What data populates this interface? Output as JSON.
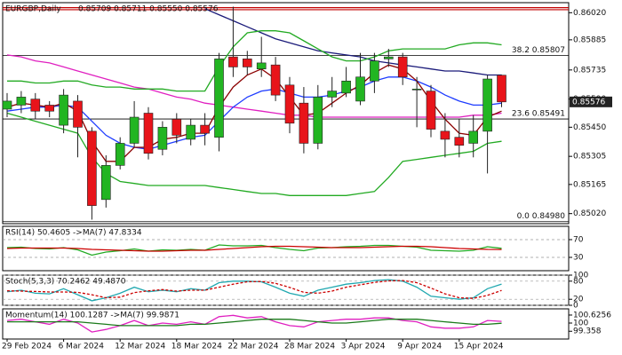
{
  "chart_data": [
    {
      "type": "candlestick",
      "title": "EURGBP,Daily",
      "subtitle": "0.85709 0.85711 0.85550 0.85576",
      "categories": [
        "29 Feb 2024",
        null,
        null,
        null,
        "6 Mar 2024",
        null,
        null,
        null,
        "12 Mar 2024",
        null,
        null,
        null,
        "18 Mar 2024",
        null,
        null,
        null,
        "22 Mar 2024",
        null,
        null,
        null,
        "28 Mar 2024",
        null,
        null,
        null,
        "3 Apr 2024",
        null,
        null,
        null,
        "9 Apr 2024",
        null,
        null,
        null,
        "15 Apr 2024",
        null,
        null,
        null
      ],
      "open": [
        0.8554,
        0.8556,
        0.8559,
        0.8556,
        0.8546,
        0.8558,
        0.8543,
        0.8509,
        0.8526,
        0.8537,
        0.8552,
        0.8534,
        0.8549,
        0.8539,
        0.8546,
        0.854,
        0.858,
        0.8579,
        0.8574,
        0.8576,
        0.8566,
        0.8557,
        0.8537,
        0.856,
        0.8562,
        0.8558,
        0.8568,
        0.8579,
        0.858,
        0.8564,
        0.8563,
        0.8543,
        0.854,
        0.8537,
        0.8543,
        0.85709
      ],
      "high": [
        0.8562,
        0.8563,
        0.8562,
        0.8558,
        0.8564,
        0.8561,
        0.8545,
        0.8531,
        0.854,
        0.8558,
        0.8555,
        0.8548,
        0.8552,
        0.8549,
        0.8552,
        0.8582,
        0.8605,
        0.8583,
        0.859,
        0.858,
        0.857,
        0.8565,
        0.8566,
        0.857,
        0.8575,
        0.8582,
        0.8582,
        0.8584,
        0.8582,
        0.857,
        0.8566,
        0.8552,
        0.8549,
        0.8551,
        0.8571,
        0.85711
      ],
      "low": [
        0.855,
        0.8552,
        0.8549,
        0.855,
        0.8542,
        0.853,
        0.8499,
        0.8505,
        0.8524,
        0.8535,
        0.8529,
        0.8531,
        0.8537,
        0.8536,
        0.8536,
        0.8533,
        0.857,
        0.8571,
        0.857,
        0.8558,
        0.8542,
        0.8532,
        0.8534,
        0.8555,
        0.856,
        0.8556,
        0.8562,
        0.8575,
        0.8566,
        0.8545,
        0.854,
        0.853,
        0.853,
        0.853,
        0.8522,
        0.8555
      ],
      "close": [
        0.8558,
        0.856,
        0.8553,
        0.8553,
        0.8561,
        0.8545,
        0.8506,
        0.8526,
        0.8537,
        0.855,
        0.8532,
        0.8545,
        0.8541,
        0.8546,
        0.8542,
        0.8579,
        0.8575,
        0.8575,
        0.8577,
        0.8561,
        0.8547,
        0.8537,
        0.856,
        0.8563,
        0.8568,
        0.857,
        0.8578,
        0.858,
        0.857,
        0.8564,
        0.8544,
        0.8539,
        0.8536,
        0.8543,
        0.8569,
        0.85576
      ],
      "up_color": "#22b522",
      "down_color": "#e8141a",
      "lines": [
        {
          "color": "#1b1b7a",
          "values": [
            null,
            null,
            null,
            null,
            null,
            null,
            null,
            null,
            null,
            null,
            null,
            null,
            null,
            null,
            0.8604,
            0.8601,
            0.8598,
            0.8595,
            0.8592,
            0.8589,
            0.8587,
            0.8585,
            0.8583,
            0.8582,
            0.8581,
            0.858,
            0.8578,
            0.8577,
            0.8576,
            0.8575,
            0.8574,
            0.8573,
            0.8573,
            0.8572,
            0.8571,
            0.8571
          ]
        },
        {
          "color": "#e020c0",
          "values": [
            0.8581,
            0.858,
            0.8578,
            0.8577,
            0.8575,
            0.8573,
            0.8571,
            0.8569,
            0.8567,
            0.8565,
            0.8564,
            0.8562,
            0.856,
            0.8559,
            0.8557,
            0.8556,
            0.8555,
            0.8554,
            0.8553,
            0.8552,
            0.8551,
            0.8551,
            0.855,
            0.855,
            0.855,
            0.855,
            0.855,
            0.855,
            0.855,
            0.855,
            0.855,
            0.855,
            0.855,
            0.8551,
            0.8551,
            0.8552
          ]
        },
        {
          "color": "#22aa22",
          "values": [
            0.8568,
            0.8568,
            0.8567,
            0.8567,
            0.8568,
            0.8568,
            0.8566,
            0.8565,
            0.8565,
            0.8564,
            0.8564,
            0.8564,
            0.8563,
            0.8563,
            0.8563,
            0.8575,
            0.8585,
            0.8592,
            0.8593,
            0.8593,
            0.8592,
            0.8588,
            0.8584,
            0.858,
            0.8578,
            0.8578,
            0.858,
            0.8583,
            0.8584,
            0.8584,
            0.8584,
            0.8584,
            0.8586,
            0.8587,
            0.8587,
            0.8586
          ]
        },
        {
          "color": "#22aa22",
          "values": [
            0.8552,
            0.855,
            0.8548,
            0.8546,
            0.8544,
            0.8542,
            0.853,
            0.8522,
            0.8518,
            0.8517,
            0.8516,
            0.8516,
            0.8516,
            0.8516,
            0.8516,
            0.8515,
            0.8514,
            0.8513,
            0.8512,
            0.8512,
            0.8511,
            0.8511,
            0.8511,
            0.8511,
            0.8511,
            0.8512,
            0.8513,
            0.852,
            0.8528,
            0.8529,
            0.853,
            0.8531,
            0.8532,
            0.8533,
            0.8537,
            0.8538
          ]
        },
        {
          "color": "#1e3cff",
          "values": [
            0.8553,
            0.8554,
            0.8555,
            0.8555,
            0.8556,
            0.8555,
            0.8548,
            0.8541,
            0.8537,
            0.8535,
            0.8534,
            0.8536,
            0.8538,
            0.854,
            0.8541,
            0.8548,
            0.8555,
            0.856,
            0.8563,
            0.8564,
            0.8562,
            0.856,
            0.856,
            0.8561,
            0.8563,
            0.8565,
            0.8568,
            0.857,
            0.857,
            0.8568,
            0.8565,
            0.8561,
            0.8558,
            0.8556,
            0.8556,
            0.8557
          ]
        },
        {
          "color": "#8b0000",
          "values": [
            0.8555,
            0.8557,
            0.8556,
            0.8555,
            0.8557,
            0.8553,
            0.8538,
            0.8528,
            0.8528,
            0.8535,
            0.8535,
            0.8539,
            0.854,
            0.8542,
            0.8542,
            0.8555,
            0.8565,
            0.8571,
            0.8574,
            0.8569,
            0.856,
            0.8551,
            0.8552,
            0.8557,
            0.8562,
            0.8566,
            0.8572,
            0.8576,
            0.8574,
            0.8568,
            0.8558,
            0.8549,
            0.8542,
            0.8541,
            0.855,
            0.8553
          ]
        }
      ],
      "hlines": [
        {
          "value": 0.86045,
          "color": "#c00000"
        },
        {
          "value": 0.86035,
          "color": "#c00000"
        }
      ],
      "levels": [
        {
          "value": 0.85807,
          "label": "38.2 0.85807"
        },
        {
          "value": 0.85491,
          "label": "23.6 0.85491"
        },
        {
          "value": 0.8498,
          "label": "0.0 0.84980"
        }
      ],
      "last_price": {
        "value": 0.85576,
        "label": "0.85576"
      },
      "ylim": [
        0.8497,
        0.8607
      ],
      "yticks": [
        {
          "value": 0.8602,
          "label": "0.86020"
        },
        0.85885,
        0.85735,
        {
          "value": 0.8559,
          "label": "0.85590"
        },
        {
          "value": 0.8545,
          "label": "0.85450"
        },
        0.85305,
        0.85165,
        {
          "value": 0.8502,
          "label": "0.85020"
        }
      ],
      "grid": false
    },
    {
      "type": "line",
      "title": "RSI(14) 50.4605 ->MA(7) 47.8334",
      "ylim": [
        0,
        100
      ],
      "yticks": [
        30,
        70
      ],
      "grid": true,
      "series": [
        {
          "color": "#22aa22",
          "values": [
            52,
            53,
            50,
            49,
            52,
            47,
            35,
            42,
            45,
            49,
            44,
            47,
            46,
            48,
            46,
            58,
            56,
            56,
            57,
            52,
            48,
            45,
            51,
            52,
            54,
            55,
            57,
            57,
            55,
            53,
            46,
            45,
            44,
            46,
            54,
            50.4605
          ]
        },
        {
          "color": "#cc0000",
          "values": [
            50,
            51,
            51,
            51,
            51,
            50,
            48,
            47,
            46,
            45,
            44,
            44,
            45,
            46,
            46,
            48,
            50,
            52,
            54,
            55,
            55,
            54,
            53,
            52,
            52,
            52,
            53,
            54,
            55,
            55,
            54,
            52,
            50,
            49,
            48,
            47.8334
          ]
        }
      ]
    },
    {
      "type": "line",
      "title": "Stoch(5,3,3) 70.2462 49.4870",
      "ylim": [
        0,
        100
      ],
      "yticks": [
        0,
        20,
        80,
        100
      ],
      "grid": true,
      "series": [
        {
          "color": "#20a8b0",
          "values": [
            45,
            50,
            40,
            38,
            55,
            35,
            15,
            25,
            40,
            60,
            45,
            50,
            45,
            55,
            50,
            75,
            80,
            80,
            78,
            60,
            40,
            30,
            50,
            60,
            70,
            75,
            82,
            85,
            80,
            60,
            30,
            25,
            20,
            25,
            55,
            70.2462
          ]
        },
        {
          "color": "#cc0000",
          "dash": true,
          "values": [
            48,
            47,
            46,
            44,
            44,
            43,
            35,
            25,
            27,
            42,
            48,
            52,
            47,
            50,
            50,
            60,
            70,
            78,
            79,
            73,
            59,
            43,
            40,
            47,
            60,
            68,
            76,
            81,
            82,
            75,
            57,
            38,
            25,
            23,
            33,
            49.487
          ]
        }
      ]
    },
    {
      "type": "line",
      "title": "Momentum(14) 100.1287 ->MA(7) 99.9871",
      "ylim": [
        98.75,
        101.11
      ],
      "yticks": [
        99.358,
        100,
        100.6256
      ],
      "grid": false,
      "series": [
        {
          "color": "#e020c0",
          "values": [
            100.2,
            100.3,
            100.1,
            99.9,
            100.3,
            100,
            99.3,
            99.5,
            99.8,
            100.2,
            99.8,
            100,
            99.9,
            100.1,
            99.9,
            100.5,
            100.6,
            100.4,
            100.5,
            100.1,
            99.8,
            99.7,
            100.1,
            100.2,
            100.3,
            100.3,
            100.4,
            100.4,
            100.2,
            100.1,
            99.7,
            99.6,
            99.6,
            99.7,
            100.2,
            100.1287
          ]
        },
        {
          "color": "#1a7a1a",
          "values": [
            100.1,
            100.1,
            100.1,
            100.1,
            100.1,
            100.1,
            100,
            99.9,
            99.8,
            99.8,
            99.8,
            99.8,
            99.8,
            99.9,
            99.9,
            100,
            100.1,
            100.2,
            100.3,
            100.3,
            100.3,
            100.2,
            100.1,
            100,
            100,
            100.1,
            100.2,
            100.3,
            100.3,
            100.3,
            100.2,
            100.1,
            100,
            99.9,
            99.9,
            99.9871
          ]
        }
      ]
    }
  ]
}
